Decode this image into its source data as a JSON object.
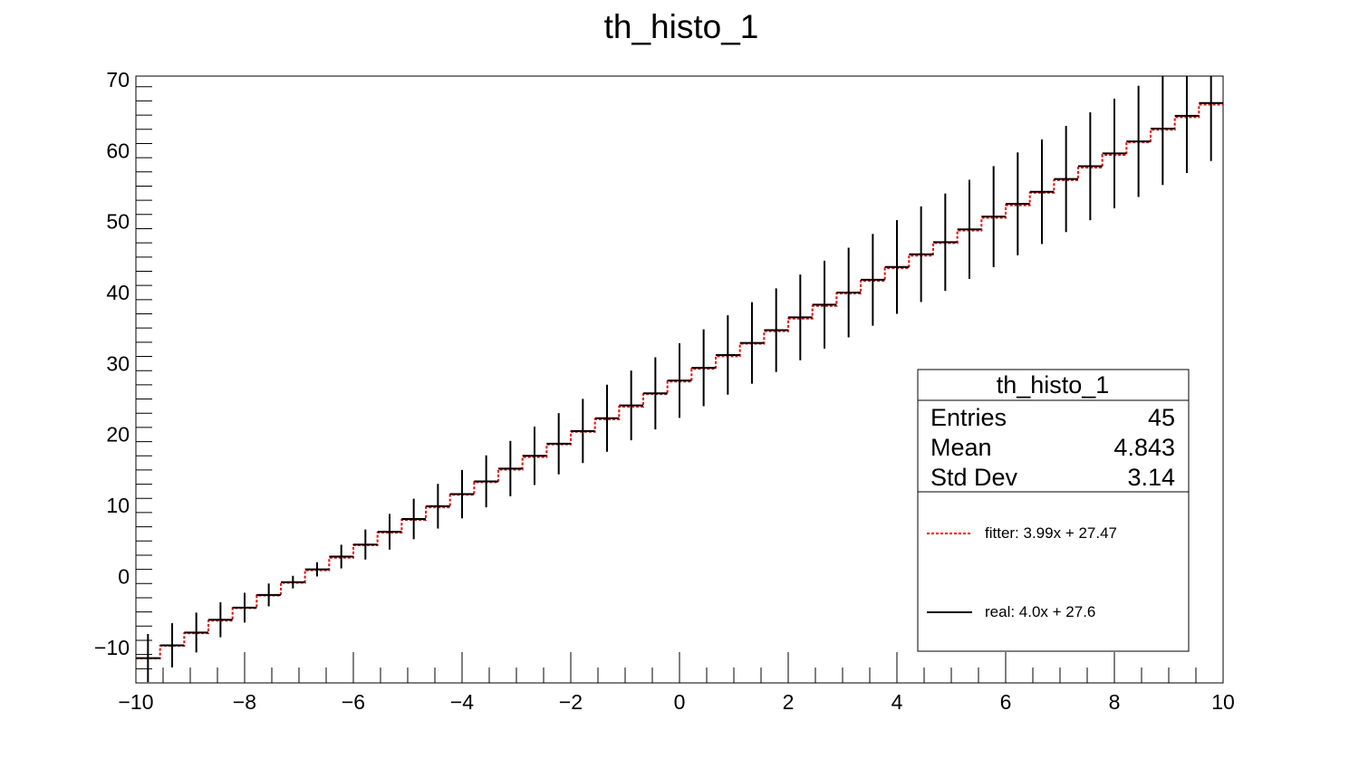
{
  "chart_data": {
    "type": "bar",
    "title": "th_histo_1",
    "xlabel": "",
    "ylabel": "",
    "xlim": [
      -10,
      10
    ],
    "ylim": [
      -15,
      70.5
    ],
    "x_ticks": [
      -10,
      -8,
      -6,
      -4,
      -2,
      0,
      2,
      4,
      6,
      8,
      10
    ],
    "y_ticks": [
      -10,
      0,
      10,
      20,
      30,
      40,
      50,
      60,
      70
    ],
    "bins": {
      "count": 45,
      "centers": [
        -9.778,
        -9.333,
        -8.889,
        -8.444,
        -8.0,
        -7.556,
        -7.111,
        -6.667,
        -6.222,
        -5.778,
        -5.333,
        -4.889,
        -4.444,
        -4.0,
        -3.556,
        -3.111,
        -2.667,
        -2.222,
        -1.778,
        -1.333,
        -0.889,
        -0.444,
        0.0,
        0.444,
        0.889,
        1.333,
        1.778,
        2.222,
        2.667,
        3.111,
        3.556,
        4.0,
        4.444,
        4.889,
        5.333,
        5.778,
        6.222,
        6.667,
        7.111,
        7.556,
        8.0,
        8.444,
        8.889,
        9.333,
        9.778
      ],
      "values": [
        -11.5,
        -9.7,
        -7.9,
        -6.1,
        -4.4,
        -2.6,
        -0.8,
        1.0,
        2.8,
        4.5,
        6.3,
        8.1,
        9.9,
        11.6,
        13.4,
        15.2,
        17.0,
        18.7,
        20.5,
        22.3,
        24.1,
        25.8,
        27.6,
        29.4,
        31.2,
        32.9,
        34.7,
        36.5,
        38.3,
        40.0,
        41.8,
        43.6,
        45.4,
        47.1,
        48.9,
        50.7,
        52.5,
        54.2,
        56.0,
        57.8,
        59.6,
        61.3,
        63.1,
        64.9,
        66.7
      ],
      "errors": [
        3.39,
        3.11,
        2.81,
        2.47,
        2.1,
        1.61,
        0.89,
        1.0,
        1.67,
        2.12,
        2.51,
        2.85,
        3.15,
        3.41,
        3.66,
        3.9,
        4.12,
        4.32,
        4.53,
        4.72,
        4.91,
        5.08,
        5.25,
        5.42,
        5.59,
        5.74,
        5.89,
        6.04,
        6.19,
        6.32,
        6.47,
        6.6,
        6.74,
        6.86,
        6.99,
        7.12,
        7.25,
        7.36,
        7.48,
        7.6,
        7.72,
        7.83,
        7.94,
        8.06,
        8.17
      ]
    },
    "series": [
      {
        "name": "fitter: 3.99x + 27.47",
        "slope": 3.99,
        "intercept": 27.47,
        "color": "#ff0000",
        "style": "dotted"
      },
      {
        "name": "real: 4.0x + 27.6",
        "slope": 4.0,
        "intercept": 27.6,
        "color": "#000000",
        "style": "solid"
      }
    ],
    "stats_box": {
      "title": "th_histo_1",
      "rows": [
        {
          "label": "Entries",
          "value": "45"
        },
        {
          "label": "Mean",
          "value": "4.843"
        },
        {
          "label": "Std Dev",
          "value": "3.14"
        }
      ]
    },
    "grid": false,
    "legend_position": "bottom-right"
  }
}
